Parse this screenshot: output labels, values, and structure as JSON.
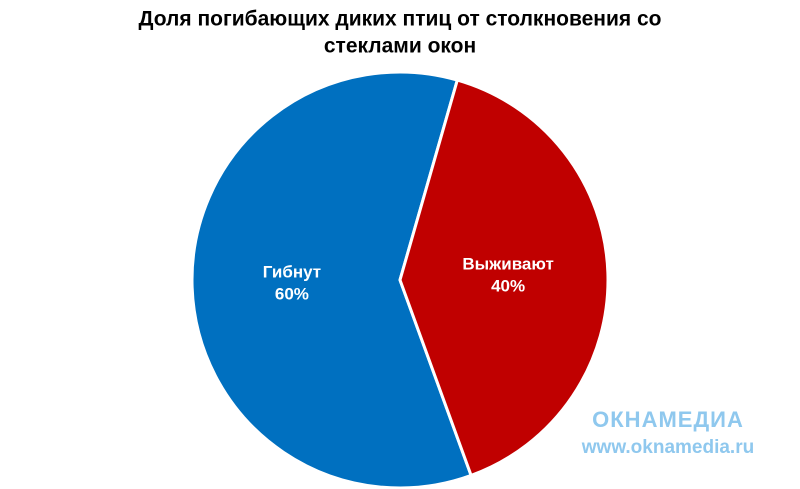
{
  "chart_data": {
    "type": "pie",
    "title": [
      "Доля погибающих диких птиц от столкновения со",
      "стеклами окон"
    ],
    "categories": [
      "Гибнут",
      "Выживают"
    ],
    "values": [
      60,
      40
    ],
    "value_labels": [
      "60%",
      "40%"
    ],
    "colors": [
      "#0070c0",
      "#c00000"
    ]
  },
  "watermark": {
    "logo": "ОКНАМЕДИА",
    "url": "www.oknamedia.ru"
  }
}
